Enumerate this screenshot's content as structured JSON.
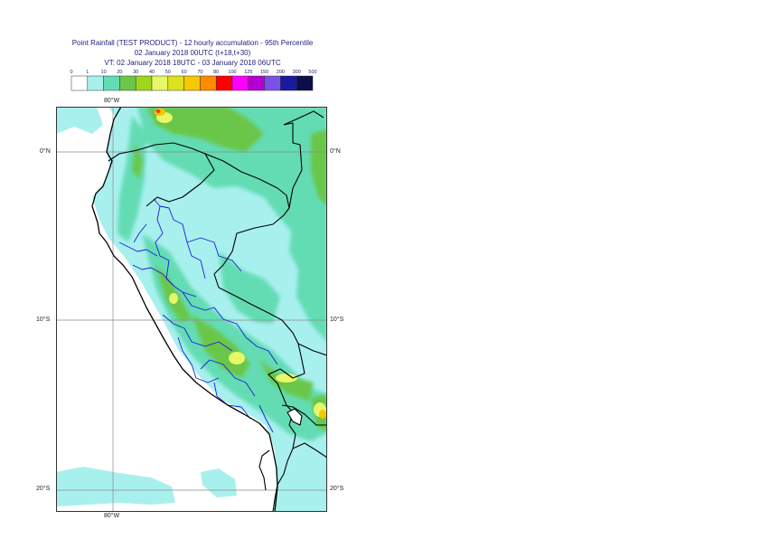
{
  "header": {
    "line1": "Point Rainfall (TEST PRODUCT) - 12 hourly accumulation - 95th Percentile",
    "line2": "02 January 2018 00UTC (t+18,t+30)",
    "line3": "VT: 02 January 2018 18UTC - 03 January 2018 06UTC"
  },
  "legend": {
    "thresholds": [
      "0",
      "1",
      "10",
      "20",
      "30",
      "40",
      "50",
      "60",
      "70",
      "80",
      "100",
      "125",
      "150",
      "200",
      "300",
      "500"
    ],
    "colors": [
      "#ffffff",
      "#a8f0ee",
      "#63dcb4",
      "#6bc64a",
      "#9ed61c",
      "#e6f768",
      "#dce21c",
      "#f5c800",
      "#ff8c00",
      "#ff0000",
      "#ff00ff",
      "#b400d2",
      "#7a52e6",
      "#1a1aa0",
      "#0d0d4a"
    ]
  },
  "map": {
    "top_lon": "80°W",
    "bottom_lon": "80°W",
    "left_lats": [
      "0°N",
      "10°S",
      "20°S"
    ],
    "right_lats": [
      "0°N",
      "10°S",
      "20°S"
    ],
    "colors": {
      "ocean": "#ffffff",
      "light": "#a8f0ee",
      "mid": "#63dcb4",
      "green": "#6bc64a",
      "yellow": "#e6f768",
      "orange": "#f5c800",
      "red": "#ff3300",
      "country_border": "#000000",
      "region_border": "#1c1cd8"
    }
  }
}
